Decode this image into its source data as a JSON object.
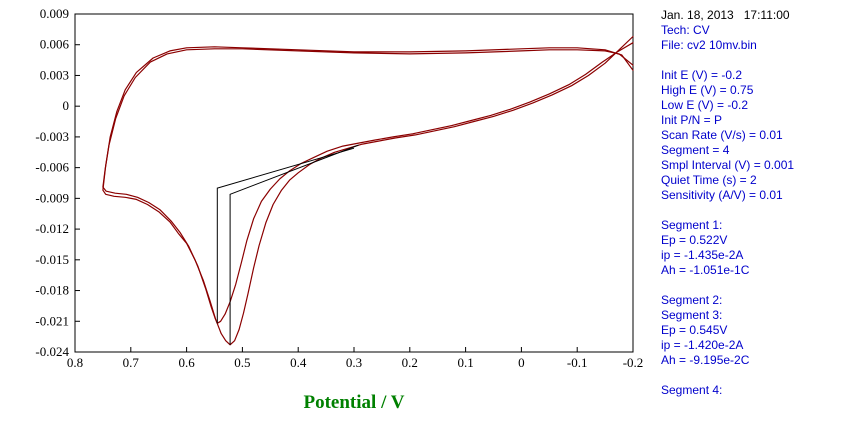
{
  "panel": {
    "lines": [
      {
        "text": "Jan. 18, 2013   17:11:00",
        "style": "black"
      },
      {
        "text": "Tech: CV",
        "style": "blue"
      },
      {
        "text": "File: cv2 10mv.bin",
        "style": "blue"
      },
      {
        "text": "",
        "style": "blank"
      },
      {
        "text": "Init E (V) = -0.2",
        "style": "blue"
      },
      {
        "text": "High E (V) = 0.75",
        "style": "blue"
      },
      {
        "text": "Low E (V) = -0.2",
        "style": "blue"
      },
      {
        "text": "Init P/N = P",
        "style": "blue"
      },
      {
        "text": "Scan Rate (V/s) = 0.01",
        "style": "blue"
      },
      {
        "text": "Segment = 4",
        "style": "blue"
      },
      {
        "text": "Smpl Interval (V) = 0.001",
        "style": "blue"
      },
      {
        "text": "Quiet Time (s) = 2",
        "style": "blue"
      },
      {
        "text": "Sensitivity (A/V) = 0.01",
        "style": "blue"
      },
      {
        "text": "",
        "style": "blank"
      },
      {
        "text": "Segment 1:",
        "style": "blue"
      },
      {
        "text": "Ep = 0.522V",
        "style": "blue"
      },
      {
        "text": "ip = -1.435e-2A",
        "style": "blue"
      },
      {
        "text": "Ah = -1.051e-1C",
        "style": "blue"
      },
      {
        "text": "",
        "style": "blank"
      },
      {
        "text": "Segment 2:",
        "style": "blue"
      },
      {
        "text": "Segment 3:",
        "style": "blue"
      },
      {
        "text": "Ep = 0.545V",
        "style": "blue"
      },
      {
        "text": "ip = -1.420e-2A",
        "style": "blue"
      },
      {
        "text": "Ah = -9.195e-2C",
        "style": "blue"
      },
      {
        "text": "",
        "style": "blank"
      },
      {
        "text": "Segment 4:",
        "style": "blue"
      }
    ]
  },
  "chart_data": {
    "type": "line",
    "subtype": "cyclic-voltammogram",
    "title": "",
    "xlabel": "Potential / V",
    "ylabel": "",
    "xlabel_color": "#008000",
    "curve_color": "#8b0000",
    "marker_color": "#000000",
    "axis_color": "#000000",
    "x_axis": {
      "min": -0.2,
      "max": 0.8,
      "reversed": true,
      "tick_labels": [
        "0.8",
        "0.7",
        "0.6",
        "0.5",
        "0.4",
        "0.3",
        "0.2",
        "0.1",
        "0",
        "-0.1",
        "-0.2"
      ]
    },
    "y_axis": {
      "min": -0.024,
      "max": 0.009,
      "tick_labels": [
        "0.009",
        "0.006",
        "0.003",
        "0",
        "-0.003",
        "-0.006",
        "-0.009",
        "-0.012",
        "-0.015",
        "-0.018",
        "-0.021",
        "-0.024"
      ]
    },
    "series": [
      {
        "name": "cycle-1-segments-1-2",
        "points": [
          [
            -0.2,
            0.0035
          ],
          [
            -0.18,
            0.005
          ],
          [
            -0.15,
            0.0055
          ],
          [
            -0.1,
            0.0057
          ],
          [
            -0.05,
            0.0057
          ],
          [
            0.0,
            0.0056
          ],
          [
            0.1,
            0.0054
          ],
          [
            0.2,
            0.0053
          ],
          [
            0.3,
            0.0053
          ],
          [
            0.4,
            0.0055
          ],
          [
            0.5,
            0.0057
          ],
          [
            0.55,
            0.0058
          ],
          [
            0.6,
            0.0057
          ],
          [
            0.63,
            0.0054
          ],
          [
            0.66,
            0.0047
          ],
          [
            0.69,
            0.0033
          ],
          [
            0.71,
            0.0016
          ],
          [
            0.725,
            -0.0005
          ],
          [
            0.737,
            -0.003
          ],
          [
            0.745,
            -0.0058
          ],
          [
            0.75,
            -0.0082
          ],
          [
            0.745,
            -0.0086
          ],
          [
            0.73,
            -0.0088
          ],
          [
            0.71,
            -0.0089
          ],
          [
            0.69,
            -0.0091
          ],
          [
            0.67,
            -0.0096
          ],
          [
            0.65,
            -0.0103
          ],
          [
            0.63,
            -0.0113
          ],
          [
            0.615,
            -0.0124
          ],
          [
            0.6,
            -0.0134
          ],
          [
            0.585,
            -0.015
          ],
          [
            0.57,
            -0.017
          ],
          [
            0.558,
            -0.019
          ],
          [
            0.548,
            -0.0208
          ],
          [
            0.538,
            -0.0222
          ],
          [
            0.53,
            -0.0229
          ],
          [
            0.522,
            -0.0233
          ],
          [
            0.514,
            -0.0229
          ],
          [
            0.506,
            -0.0218
          ],
          [
            0.498,
            -0.0202
          ],
          [
            0.49,
            -0.0183
          ],
          [
            0.48,
            -0.0158
          ],
          [
            0.47,
            -0.0136
          ],
          [
            0.458,
            -0.0114
          ],
          [
            0.445,
            -0.0096
          ],
          [
            0.43,
            -0.0082
          ],
          [
            0.415,
            -0.0072
          ],
          [
            0.4,
            -0.0065
          ],
          [
            0.38,
            -0.0057
          ],
          [
            0.36,
            -0.0051
          ],
          [
            0.335,
            -0.0045
          ],
          [
            0.31,
            -0.0041
          ],
          [
            0.285,
            -0.0037
          ],
          [
            0.255,
            -0.0034
          ],
          [
            0.225,
            -0.0031
          ],
          [
            0.19,
            -0.0028
          ],
          [
            0.155,
            -0.0024
          ],
          [
            0.12,
            -0.002
          ],
          [
            0.085,
            -0.0015
          ],
          [
            0.05,
            -0.001
          ],
          [
            0.015,
            -0.0004
          ],
          [
            -0.02,
            0.0003
          ],
          [
            -0.055,
            0.0011
          ],
          [
            -0.09,
            0.002
          ],
          [
            -0.12,
            0.003
          ],
          [
            -0.15,
            0.0042
          ],
          [
            -0.175,
            0.0055
          ],
          [
            -0.2,
            0.0068
          ]
        ]
      },
      {
        "name": "cycle-2-segments-3-4",
        "points": [
          [
            -0.2,
            0.004
          ],
          [
            -0.175,
            0.0051
          ],
          [
            -0.15,
            0.0054
          ],
          [
            -0.1,
            0.0055
          ],
          [
            -0.05,
            0.0055
          ],
          [
            0.0,
            0.0054
          ],
          [
            0.1,
            0.0052
          ],
          [
            0.2,
            0.0051
          ],
          [
            0.3,
            0.0052
          ],
          [
            0.4,
            0.0054
          ],
          [
            0.5,
            0.0056
          ],
          [
            0.55,
            0.0056
          ],
          [
            0.6,
            0.0055
          ],
          [
            0.635,
            0.0051
          ],
          [
            0.665,
            0.0043
          ],
          [
            0.692,
            0.0028
          ],
          [
            0.712,
            0.001
          ],
          [
            0.727,
            -0.0012
          ],
          [
            0.739,
            -0.0038
          ],
          [
            0.746,
            -0.0062
          ],
          [
            0.75,
            -0.0079
          ],
          [
            0.744,
            -0.0083
          ],
          [
            0.728,
            -0.0085
          ],
          [
            0.708,
            -0.0086
          ],
          [
            0.688,
            -0.0089
          ],
          [
            0.668,
            -0.0094
          ],
          [
            0.648,
            -0.0101
          ],
          [
            0.628,
            -0.0112
          ],
          [
            0.612,
            -0.0123
          ],
          [
            0.596,
            -0.0137
          ],
          [
            0.58,
            -0.0156
          ],
          [
            0.566,
            -0.0178
          ],
          [
            0.556,
            -0.0196
          ],
          [
            0.549,
            -0.0207
          ],
          [
            0.545,
            -0.0212
          ],
          [
            0.539,
            -0.021
          ],
          [
            0.531,
            -0.0203
          ],
          [
            0.522,
            -0.0191
          ],
          [
            0.512,
            -0.0174
          ],
          [
            0.502,
            -0.0153
          ],
          [
            0.492,
            -0.0131
          ],
          [
            0.48,
            -0.011
          ],
          [
            0.466,
            -0.0093
          ],
          [
            0.45,
            -0.0081
          ],
          [
            0.433,
            -0.0071
          ],
          [
            0.415,
            -0.0063
          ],
          [
            0.395,
            -0.0056
          ],
          [
            0.372,
            -0.005
          ],
          [
            0.348,
            -0.0044
          ],
          [
            0.32,
            -0.0039
          ],
          [
            0.292,
            -0.0036
          ],
          [
            0.262,
            -0.0033
          ],
          [
            0.23,
            -0.003
          ],
          [
            0.195,
            -0.0027
          ],
          [
            0.16,
            -0.0023
          ],
          [
            0.125,
            -0.0019
          ],
          [
            0.09,
            -0.0014
          ],
          [
            0.055,
            -0.0009
          ],
          [
            0.02,
            -0.0003
          ],
          [
            -0.015,
            0.0004
          ],
          [
            -0.05,
            0.0012
          ],
          [
            -0.085,
            0.0021
          ],
          [
            -0.115,
            0.0031
          ],
          [
            -0.145,
            0.0043
          ],
          [
            -0.172,
            0.0053
          ],
          [
            -0.2,
            0.0062
          ]
        ]
      }
    ],
    "peak_markers": [
      {
        "name": "peak-segment-1",
        "ep": 0.522,
        "ip": -0.01435,
        "polyline": [
          [
            0.522,
            -0.0233
          ],
          [
            0.522,
            -0.0086
          ],
          [
            0.292,
            -0.0038
          ]
        ]
      },
      {
        "name": "peak-segment-3",
        "ep": 0.545,
        "ip": -0.0142,
        "polyline": [
          [
            0.545,
            -0.0212
          ],
          [
            0.545,
            -0.008
          ],
          [
            0.3,
            -0.0041
          ]
        ]
      }
    ]
  }
}
